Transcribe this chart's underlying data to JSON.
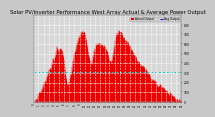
{
  "title": "Solar PV/Inverter Performance West Array Actual & Average Power Output",
  "title_fontsize": 3.8,
  "bg_color": "#c8c8c8",
  "plot_bg_color": "#d8d8d8",
  "text_color": "#000000",
  "grid_color": "#ffffff",
  "bar_color": "#ee0000",
  "avg_line_color": "#00cccc",
  "legend_actual_color": "#ee0000",
  "legend_avg_color": "#0000ff",
  "legend_label_actual": "Actual Output",
  "legend_label_avg": "Avg Output",
  "n_points": 144,
  "peak_value": 800,
  "avg_value": 310,
  "ylim": [
    0,
    900
  ],
  "yticks": [
    0,
    100,
    200,
    300,
    400,
    500,
    600,
    700,
    800
  ],
  "ytick_labels": [
    "0",
    "100",
    "200",
    "300",
    "400",
    "500",
    "600",
    "700",
    "800"
  ]
}
